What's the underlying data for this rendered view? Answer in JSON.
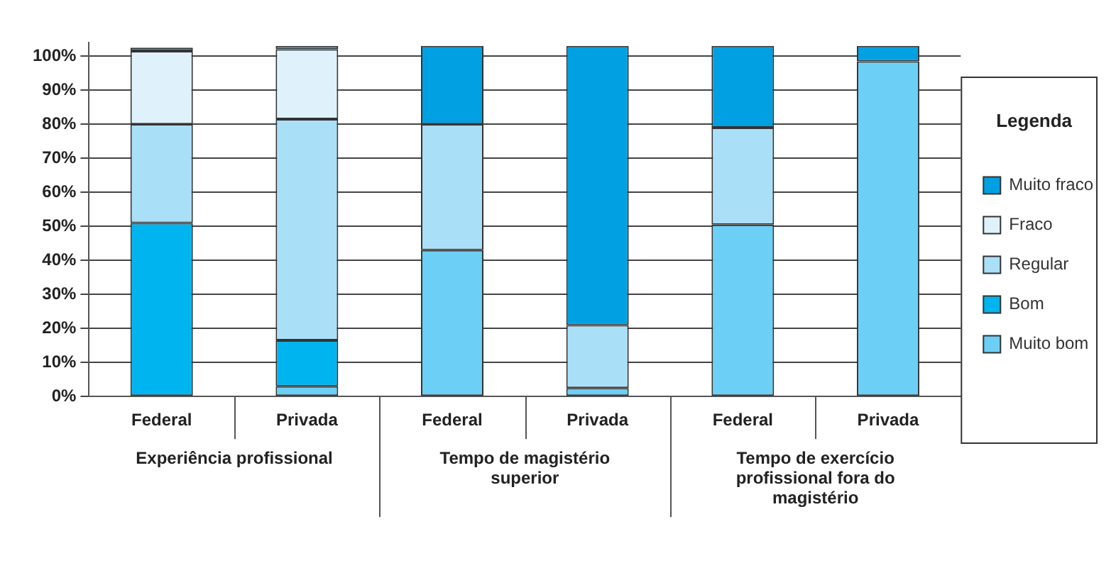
{
  "chart_data": {
    "type": "bar",
    "stacked": true,
    "legend_title": "Legenda",
    "legend": "right",
    "grid": "y",
    "categories": [
      "Federal",
      "Privada",
      "Federal",
      "Privada",
      "Federal",
      "Privada"
    ],
    "annotations": [
      "Experiência profissional",
      "Tempo de magistério superior",
      "Tempo de exercício profissional fora do magistério"
    ],
    "ylim": [
      0,
      104
    ],
    "yticks": [
      {
        "value": 0,
        "label": "0%"
      },
      {
        "value": 10,
        "label": "10%"
      },
      {
        "value": 20,
        "label": "20%"
      },
      {
        "value": 30,
        "label": "30%"
      },
      {
        "value": 40,
        "label": "40%"
      },
      {
        "value": 50,
        "label": "50%"
      },
      {
        "value": 60,
        "label": "60%"
      },
      {
        "value": 70,
        "label": "70%"
      },
      {
        "value": 80,
        "label": "80%"
      },
      {
        "value": 90,
        "label": "90%"
      },
      {
        "value": 100,
        "label": "100%"
      }
    ],
    "series": [
      {
        "name": "Muito bom",
        "color": "#6ccff5",
        "values": [
          0,
          3,
          43,
          2.5,
          50.5,
          98.5
        ]
      },
      {
        "name": "Bom",
        "color": "#00b5ef",
        "values": [
          51,
          13.5,
          0,
          0,
          0,
          0
        ]
      },
      {
        "name": "Regular",
        "color": "#aadff8",
        "values": [
          29,
          65,
          37,
          18.5,
          28.5,
          0
        ]
      },
      {
        "name": "Fraco",
        "color": "#dff2fc",
        "values": [
          21.5,
          20.5,
          0,
          0,
          0,
          0
        ]
      },
      {
        "name": "Muito fraco",
        "color": "#00a0e3",
        "values": [
          1,
          1,
          23,
          82,
          24,
          4.5
        ]
      }
    ]
  }
}
